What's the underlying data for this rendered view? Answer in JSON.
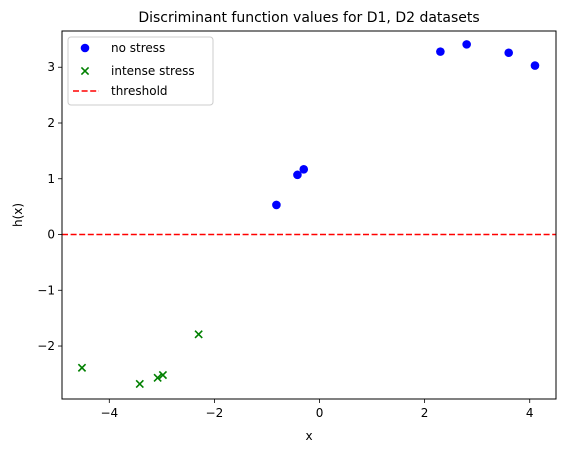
{
  "chart_data": {
    "type": "scatter",
    "title": "Discriminant function values for D1, D2 datasets",
    "xlabel": "x",
    "ylabel": "h(x)",
    "xlim": [
      -4.9,
      4.5
    ],
    "ylim": [
      -2.95,
      3.65
    ],
    "xticks": [
      -4,
      -2,
      0,
      2,
      4
    ],
    "xtick_labels": [
      "−4",
      "−2",
      "0",
      "2",
      "4"
    ],
    "yticks": [
      -2,
      -1,
      0,
      1,
      2,
      3
    ],
    "ytick_labels": [
      "−2",
      "−1",
      "0",
      "1",
      "2",
      "3"
    ],
    "grid": false,
    "legend_position": "top-left",
    "series": [
      {
        "name": "no stress",
        "marker": "circle",
        "color": "#0000ff",
        "points": [
          [
            -0.82,
            0.53
          ],
          [
            -0.42,
            1.07
          ],
          [
            -0.3,
            1.17
          ],
          [
            2.3,
            3.28
          ],
          [
            2.8,
            3.41
          ],
          [
            3.6,
            3.26
          ],
          [
            4.1,
            3.03
          ]
        ]
      },
      {
        "name": "intense stress",
        "marker": "x",
        "color": "#008000",
        "points": [
          [
            -4.52,
            -2.39
          ],
          [
            -3.42,
            -2.68
          ],
          [
            -3.08,
            -2.57
          ],
          [
            -2.98,
            -2.52
          ],
          [
            -2.3,
            -1.79
          ]
        ]
      }
    ],
    "threshold": {
      "name": "threshold",
      "y": 0,
      "color": "#ff0000",
      "style": "dashed"
    }
  }
}
